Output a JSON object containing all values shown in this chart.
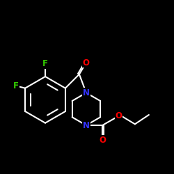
{
  "bg_color": "#000000",
  "bond_color": "#ffffff",
  "atom_colors": {
    "N": "#3333ff",
    "O": "#ff0000",
    "F": "#33cc00",
    "C": "#ffffff"
  },
  "font_size_atom": 8.5,
  "line_width": 1.5,
  "figsize": [
    2.5,
    2.5
  ],
  "dpi": 100,
  "xlim": [
    0,
    750
  ],
  "ylim": [
    0,
    750
  ]
}
